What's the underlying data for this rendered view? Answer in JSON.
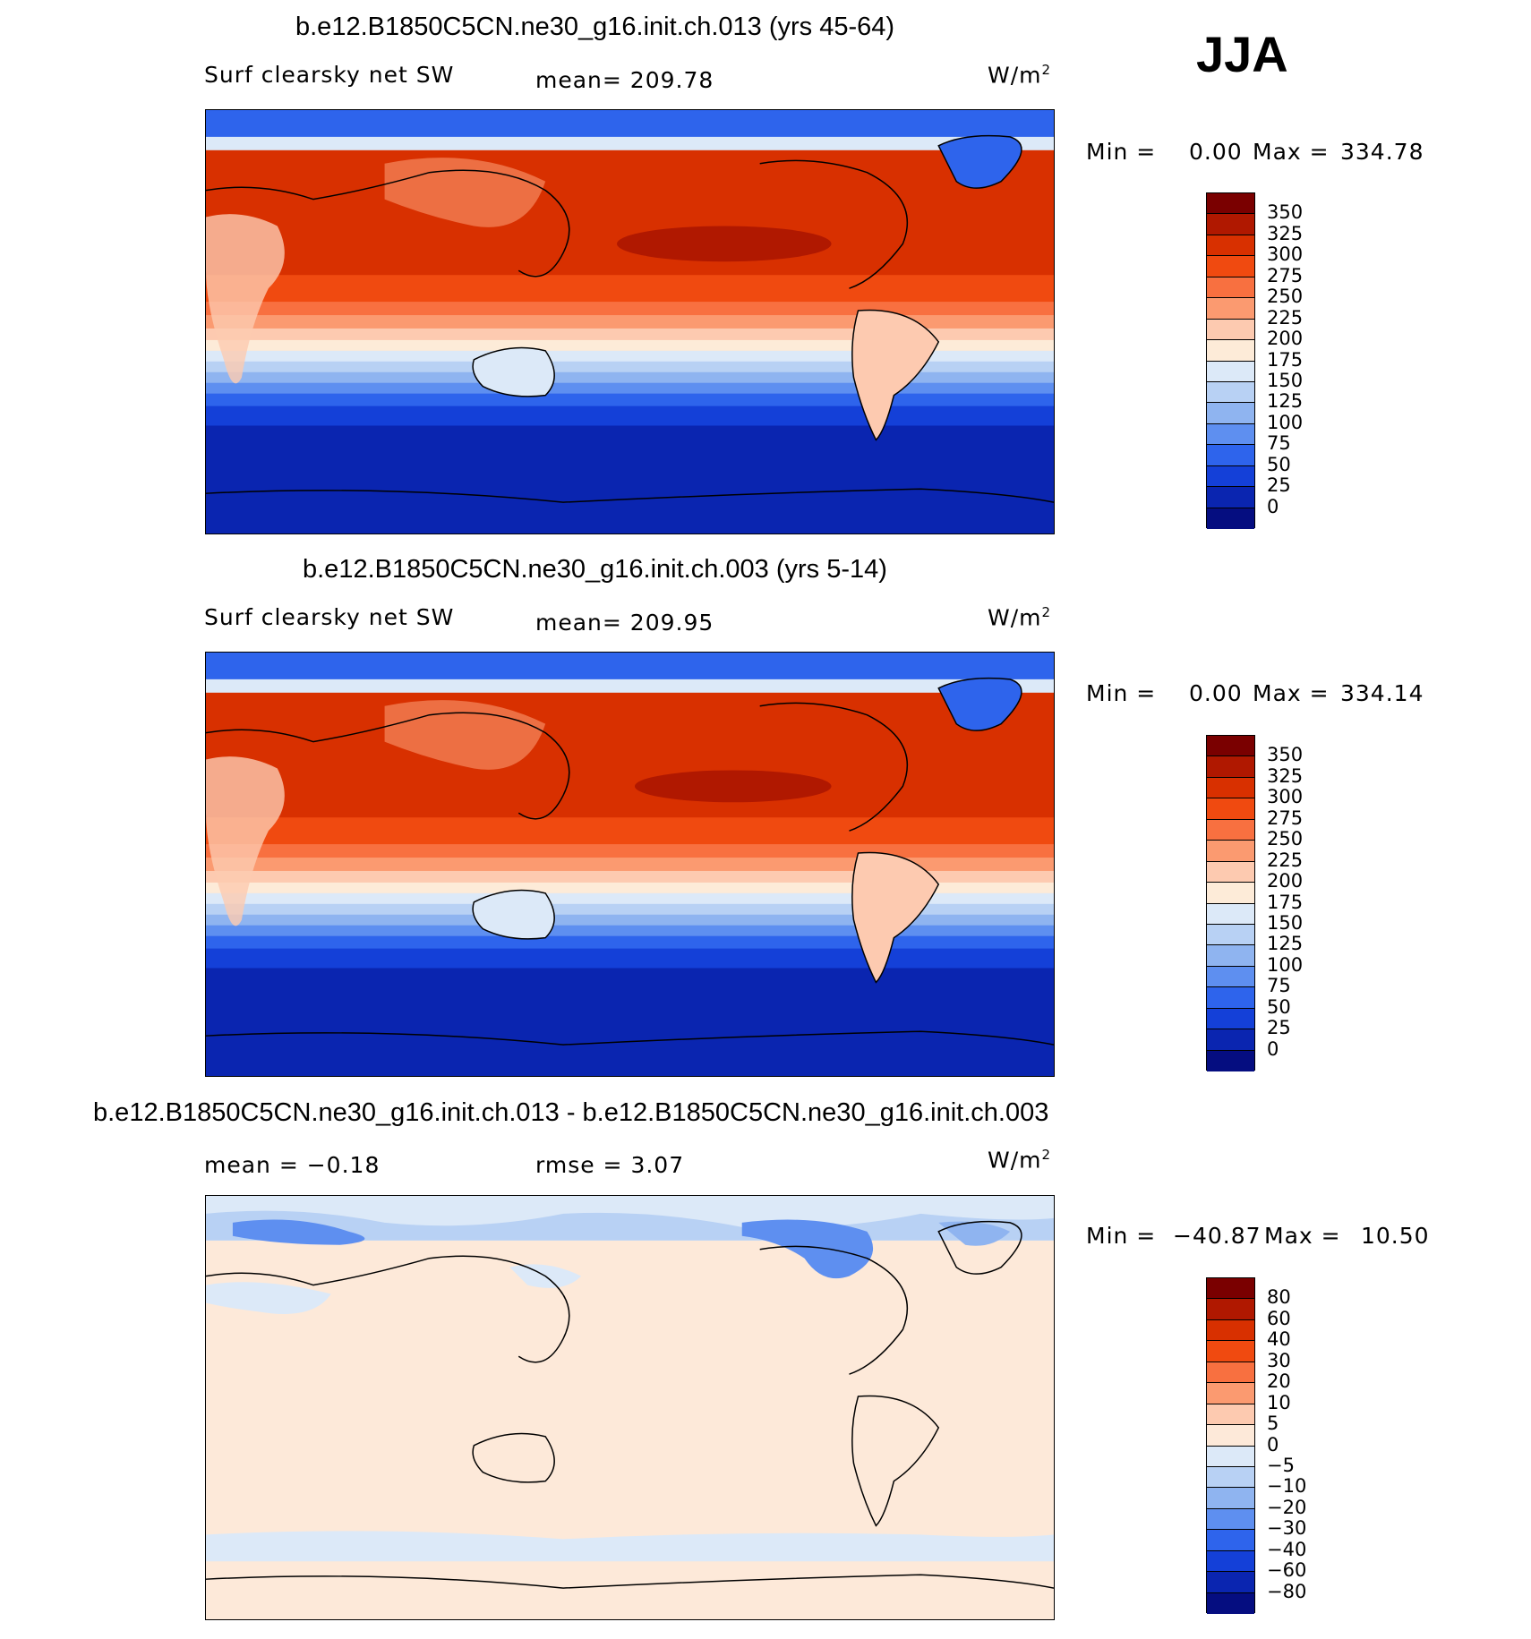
{
  "season": "JJA",
  "panels": [
    {
      "title": "b.e12.B1850C5CN.ne30_g16.init.ch.013 (yrs 45-64)",
      "left_label": "Surf clearsky net SW",
      "center_label": "mean= 209.78",
      "units": "W/m",
      "units_sup": "2",
      "min_label": "Min =",
      "min_value": "0.00",
      "max_label": "Max =",
      "max_value": "334.78",
      "colorbar_labels": [
        "350",
        "325",
        "300",
        "275",
        "250",
        "225",
        "200",
        "175",
        "150",
        "125",
        "100",
        "75",
        "50",
        "25",
        "0"
      ]
    },
    {
      "title": "b.e12.B1850C5CN.ne30_g16.init.ch.003 (yrs 5-14)",
      "left_label": "Surf clearsky net SW",
      "center_label": "mean= 209.95",
      "units": "W/m",
      "units_sup": "2",
      "min_label": "Min =",
      "min_value": "0.00",
      "max_label": "Max =",
      "max_value": "334.14",
      "colorbar_labels": [
        "350",
        "325",
        "300",
        "275",
        "250",
        "225",
        "200",
        "175",
        "150",
        "125",
        "100",
        "75",
        "50",
        "25",
        "0"
      ]
    },
    {
      "title": "b.e12.B1850C5CN.ne30_g16.init.ch.013 - b.e12.B1850C5CN.ne30_g16.init.ch.003",
      "left_label": "mean =   −0.18",
      "center_label": "rmse =    3.07",
      "units": "W/m",
      "units_sup": "2",
      "min_label": "Min =",
      "min_value": "−40.87",
      "max_label": "Max =",
      "max_value": "10.50",
      "colorbar_labels": [
        "80",
        "60",
        "40",
        "30",
        "20",
        "10",
        "5",
        "0",
        "−5",
        "−10",
        "−20",
        "−30",
        "−40",
        "−60",
        "−80"
      ]
    }
  ],
  "colors": {
    "abs_scale": [
      "#7a0000",
      "#b01800",
      "#d83000",
      "#f04a10",
      "#f87040",
      "#fb9a70",
      "#fdcab0",
      "#fdebd8",
      "#dce9f8",
      "#b8d1f4",
      "#8fb4f0",
      "#5e8ff0",
      "#2e64ec",
      "#1440d8",
      "#0a25b0",
      "#050d80"
    ],
    "diff_scale": [
      "#7a0000",
      "#b01800",
      "#d83000",
      "#f04a10",
      "#f87040",
      "#fb9a70",
      "#fdcab0",
      "#fde9d9",
      "#dce9f8",
      "#b8d1f4",
      "#8fb4f0",
      "#5e8ff0",
      "#2e64ec",
      "#1440d8",
      "#0a25b0",
      "#050d80"
    ]
  }
}
